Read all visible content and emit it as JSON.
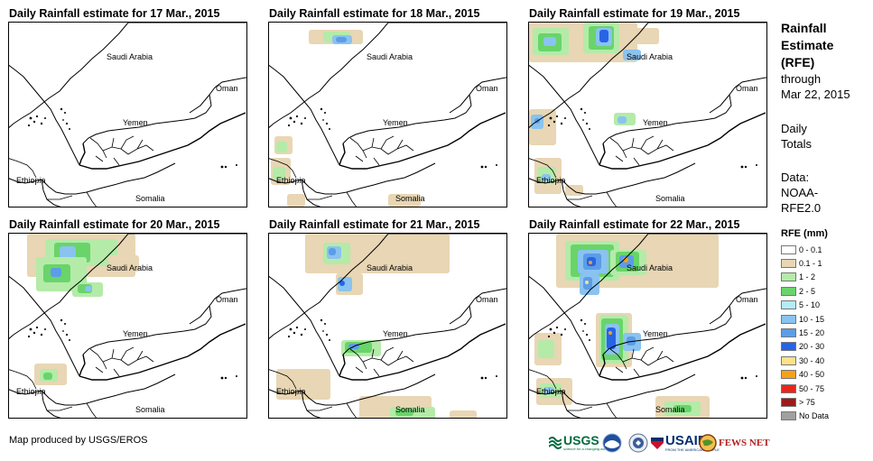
{
  "panels": [
    {
      "title": "Daily Rainfall estimate for 17 Mar., 2015"
    },
    {
      "title": "Daily Rainfall estimate for 18 Mar., 2015"
    },
    {
      "title": "Daily Rainfall estimate for 19 Mar., 2015"
    },
    {
      "title": "Daily Rainfall estimate for 20 Mar., 2015"
    },
    {
      "title": "Daily Rainfall estimate for 21 Mar., 2015"
    },
    {
      "title": "Daily Rainfall estimate for 22 Mar., 2015"
    }
  ],
  "map_labels": {
    "saudi": "Saudi Arabia",
    "oman": "Oman",
    "yemen": "Yemen",
    "ethiopia": "Ethiopia",
    "somalia": "Somalia"
  },
  "legend": {
    "title_line1": "Rainfall",
    "title_line2": "Estimate",
    "title_line3": "(RFE)",
    "through": "through",
    "date": "Mar 22, 2015",
    "daily": "Daily",
    "totals": "Totals",
    "data_label": "Data:",
    "data_source1": "NOAA-",
    "data_source2": "RFE2.0",
    "scale_title": "RFE (mm)",
    "classes": [
      {
        "label": "0 - 0.1",
        "color": "#ffffff"
      },
      {
        "label": "0.1 - 1",
        "color": "#e8d6b4"
      },
      {
        "label": "1 - 2",
        "color": "#b4eba8"
      },
      {
        "label": "2 - 5",
        "color": "#69d46a"
      },
      {
        "label": "5 - 10",
        "color": "#b3ecf5"
      },
      {
        "label": "10 - 15",
        "color": "#8ac3ef"
      },
      {
        "label": "15 - 20",
        "color": "#5b9de8"
      },
      {
        "label": "20 - 30",
        "color": "#2764e6"
      },
      {
        "label": "30 - 40",
        "color": "#fbe28b"
      },
      {
        "label": "40 - 50",
        "color": "#f5a21a"
      },
      {
        "label": "50 - 75",
        "color": "#e8261c"
      },
      {
        "label": "> 75",
        "color": "#9b1b1b"
      },
      {
        "label": "No Data",
        "color": "#a0a0a0"
      }
    ]
  },
  "credit": "Map produced by USGS/EROS",
  "logos": {
    "usgs": "USGS",
    "usgs_tagline": "science for a changing world",
    "usaid": "USAID",
    "usaid_tagline": "FROM THE AMERICAN PEOPLE",
    "fews": "FEWS NET"
  }
}
